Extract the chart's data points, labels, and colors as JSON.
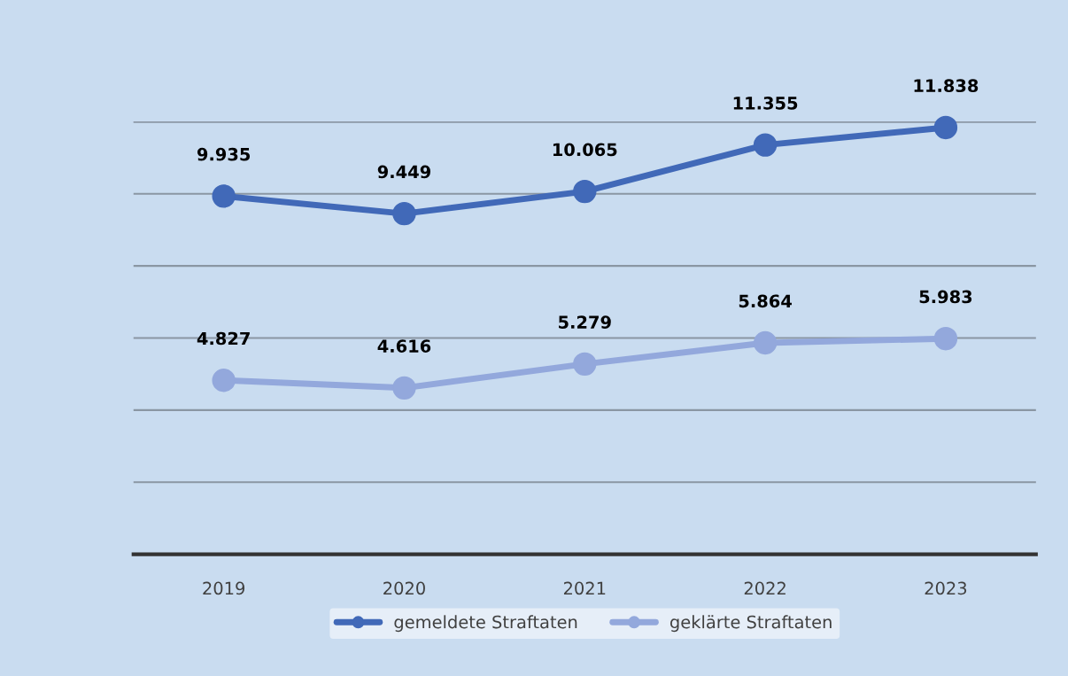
{
  "chart_data": {
    "type": "line",
    "categories": [
      "2019",
      "2020",
      "2021",
      "2022",
      "2023"
    ],
    "series": [
      {
        "name": "gemeldete Straftaten",
        "color": "#4169b8",
        "values": [
          9935,
          9449,
          10065,
          11355,
          11838
        ],
        "value_labels": [
          "9.935",
          "9.449",
          "10.065",
          "11.355",
          "11.838"
        ]
      },
      {
        "name": "geklärte Straftaten",
        "color": "#93a8dc",
        "values": [
          4827,
          4616,
          5279,
          5864,
          5983
        ],
        "value_labels": [
          "4.827",
          "4.616",
          "5.279",
          "5.864",
          "5.983"
        ]
      }
    ],
    "ylim": [
      0,
      12000
    ],
    "yticks": [
      {
        "value": 0,
        "label": null
      },
      {
        "value": 2000,
        "label": null
      },
      {
        "value": 4000,
        "label": null
      },
      {
        "value": 6000,
        "label": null
      },
      {
        "value": 8000,
        "label": null
      },
      {
        "value": 10000,
        "label": null
      },
      {
        "value": 12000,
        "label": null
      }
    ],
    "grid": "y",
    "legend": "bottom",
    "tick_labels": "x",
    "marker": "circle",
    "line_style": "solid"
  }
}
